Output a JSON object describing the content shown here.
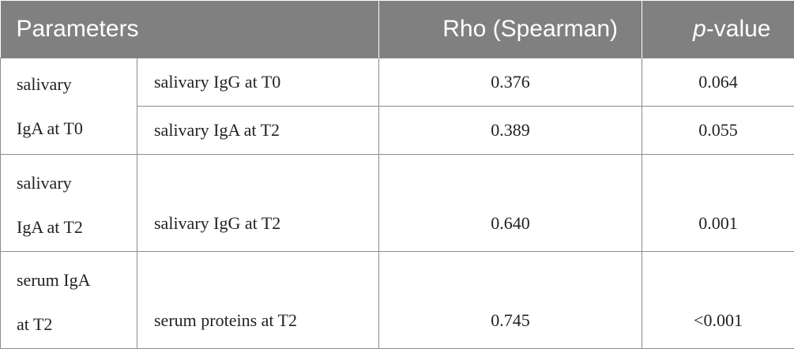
{
  "table": {
    "headers": {
      "parameters": "Parameters",
      "rho": "Rho (Spearman)",
      "p_prefix": "p",
      "p_suffix": "-value"
    },
    "groups": [
      {
        "parameter_line1": "salivary",
        "parameter_line2": "IgA at T0",
        "rows": [
          {
            "compared_with": "salivary IgG at T0",
            "rho": "0.376",
            "p_value": "0.064"
          },
          {
            "compared_with": "salivary IgA at T2",
            "rho": "0.389",
            "p_value": "0.055"
          }
        ]
      },
      {
        "parameter_line1": "salivary",
        "parameter_line2": "IgA at T2",
        "rows": [
          {
            "compared_with": "salivary IgG at T2",
            "rho": "0.640",
            "p_value": "0.001"
          }
        ]
      },
      {
        "parameter_line1": "serum IgA",
        "parameter_line2": "at T2",
        "rows": [
          {
            "compared_with": "serum proteins at T2",
            "rho": "0.745",
            "p_value": "<0.001"
          }
        ]
      }
    ]
  }
}
